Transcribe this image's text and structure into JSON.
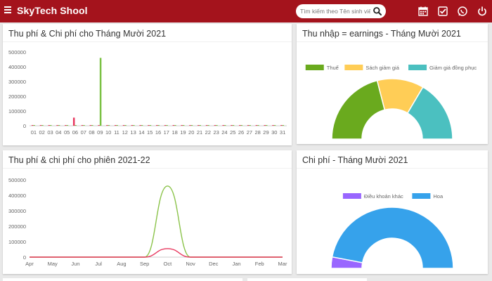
{
  "header": {
    "brand": "SkyTech Shool",
    "search_placeholder": "Tìm kiếm theo Tên sinh viên",
    "icons": [
      "calendar-icon",
      "checkbox-icon",
      "whatsapp-icon",
      "power-icon"
    ],
    "bg_color": "#a4131c"
  },
  "cards": {
    "fees_month": {
      "title": "Thu phí & Chi phí cho Tháng Mười 2021"
    },
    "income_month": {
      "title": "Thu nhập = earnings - Tháng Mười 2021"
    },
    "fees_session": {
      "title": "Thu phí & chi phí cho phiên 2021-22"
    },
    "expense_month": {
      "title": "Chi phí - Tháng Mười 2021"
    }
  },
  "chart_data": [
    {
      "id": "fees_month",
      "type": "bar",
      "categories": [
        "01",
        "02",
        "03",
        "04",
        "05",
        "06",
        "07",
        "08",
        "09",
        "10",
        "11",
        "12",
        "13",
        "14",
        "15",
        "16",
        "17",
        "18",
        "19",
        "20",
        "21",
        "22",
        "23",
        "24",
        "25",
        "26",
        "27",
        "28",
        "29",
        "30",
        "31"
      ],
      "series": [
        {
          "color": "#e8395f",
          "values": [
            0,
            0,
            0,
            0,
            0,
            55000,
            0,
            0,
            0,
            0,
            0,
            0,
            0,
            0,
            0,
            0,
            0,
            0,
            0,
            0,
            0,
            0,
            0,
            0,
            0,
            0,
            0,
            0,
            0,
            0,
            0
          ]
        },
        {
          "color": "#7ac143",
          "values": [
            0,
            0,
            0,
            0,
            0,
            0,
            0,
            0,
            460000,
            0,
            0,
            0,
            0,
            0,
            0,
            0,
            0,
            0,
            0,
            0,
            0,
            0,
            0,
            0,
            0,
            0,
            0,
            0,
            0,
            0,
            0
          ]
        }
      ],
      "yticks": [
        "500000",
        "400000",
        "300000",
        "200000",
        "100000",
        "0"
      ],
      "ylim": [
        0,
        500000
      ]
    },
    {
      "id": "income_month",
      "type": "pie",
      "legend": [
        "Thuế",
        "Sách giảm giá",
        "Giảm giá đồng phục"
      ],
      "values": [
        42,
        25,
        33
      ],
      "colors": [
        "#6aaa1e",
        "#ffcd56",
        "#4bc0c0"
      ]
    },
    {
      "id": "fees_session",
      "type": "line",
      "categories": [
        "Apr",
        "May",
        "Jun",
        "Jul",
        "Aug",
        "Sep",
        "Oct",
        "Nov",
        "Dec",
        "Jan",
        "Feb",
        "Mar"
      ],
      "series": [
        {
          "color": "#8bc34a",
          "values": [
            0,
            0,
            0,
            0,
            0,
            0,
            460000,
            0,
            0,
            0,
            0,
            0
          ]
        },
        {
          "color": "#e8395f",
          "values": [
            0,
            0,
            0,
            0,
            0,
            0,
            55000,
            0,
            0,
            0,
            0,
            0
          ]
        }
      ],
      "yticks": [
        "500000",
        "400000",
        "300000",
        "200000",
        "100000",
        "0"
      ],
      "ylim": [
        0,
        500000
      ]
    },
    {
      "id": "expense_month",
      "type": "pie",
      "legend": [
        "Điều khoản khác",
        "Hoa"
      ],
      "values": [
        6,
        94
      ],
      "colors": [
        "#9966ff",
        "#36a2eb"
      ]
    }
  ]
}
